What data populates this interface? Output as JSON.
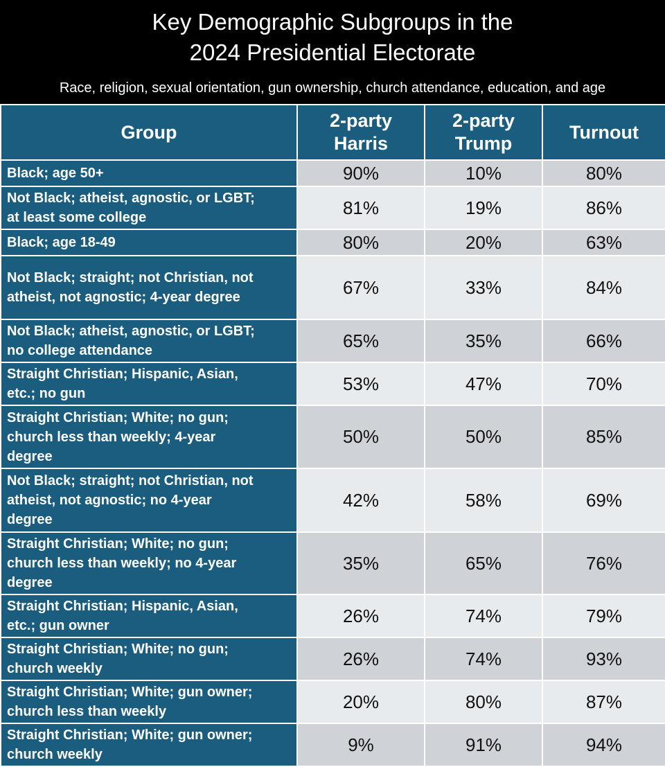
{
  "title_line1": "Key Demographic Subgroups in the",
  "title_line2": "2024 Presidential Electorate",
  "subtitle": "Race, religion, sexual orientation, gun ownership, church attendance, education, and age",
  "colors": {
    "header_bg": "#000000",
    "group_bg": "#1a5d7f",
    "row_odd": "#cfd3d8",
    "row_even": "#e8ebed"
  },
  "chart_data": {
    "type": "table",
    "title": "Key Demographic Subgroups in the 2024 Presidential Electorate",
    "subtitle": "Race, religion, sexual orientation, gun ownership, church attendance, education, and age",
    "columns": [
      {
        "line1": "Group",
        "line2": ""
      },
      {
        "line1": "2-party",
        "line2": "Harris"
      },
      {
        "line1": "2-party",
        "line2": "Trump"
      },
      {
        "line1": "Turnout",
        "line2": ""
      }
    ],
    "rows": [
      {
        "group": [
          "Black; age 50+"
        ],
        "harris": "90%",
        "trump": "10%",
        "turnout": "80%"
      },
      {
        "group": [
          "Not Black; atheist, agnostic, or LGBT;",
          "at least some college"
        ],
        "harris": "81%",
        "trump": "19%",
        "turnout": "86%"
      },
      {
        "group": [
          "Black; age 18-49"
        ],
        "harris": "80%",
        "trump": "20%",
        "turnout": "63%"
      },
      {
        "group": [
          "Not Black; straight; not Christian, not",
          "atheist, not agnostic; 4-year degree"
        ],
        "harris": "67%",
        "trump": "33%",
        "turnout": "84%"
      },
      {
        "group": [
          "Not Black; atheist, agnostic, or LGBT;",
          "no college attendance"
        ],
        "harris": "65%",
        "trump": "35%",
        "turnout": "66%"
      },
      {
        "group": [
          "Straight Christian; Hispanic, Asian,",
          "etc.; no gun"
        ],
        "harris": "53%",
        "trump": "47%",
        "turnout": "70%"
      },
      {
        "group": [
          "Straight Christian; White; no gun;",
          "church less than weekly; 4-year",
          "degree"
        ],
        "harris": "50%",
        "trump": "50%",
        "turnout": "85%"
      },
      {
        "group": [
          "Not Black; straight; not Christian, not",
          "atheist, not agnostic; no 4-year",
          "degree"
        ],
        "harris": "42%",
        "trump": "58%",
        "turnout": "69%"
      },
      {
        "group": [
          "Straight Christian; White; no gun;",
          "church less than weekly; no 4-year",
          "degree"
        ],
        "harris": "35%",
        "trump": "65%",
        "turnout": "76%"
      },
      {
        "group": [
          "Straight Christian; Hispanic, Asian,",
          "etc.; gun owner"
        ],
        "harris": "26%",
        "trump": "74%",
        "turnout": "79%"
      },
      {
        "group": [
          "Straight Christian; White; no gun;",
          "church weekly"
        ],
        "harris": "26%",
        "trump": "74%",
        "turnout": "93%"
      },
      {
        "group": [
          "Straight Christian; White; gun owner;",
          "church less than weekly"
        ],
        "harris": "20%",
        "trump": "80%",
        "turnout": "87%"
      },
      {
        "group": [
          "Straight Christian; White; gun owner;",
          "church weekly"
        ],
        "harris": "9%",
        "trump": "91%",
        "turnout": "94%"
      }
    ]
  }
}
